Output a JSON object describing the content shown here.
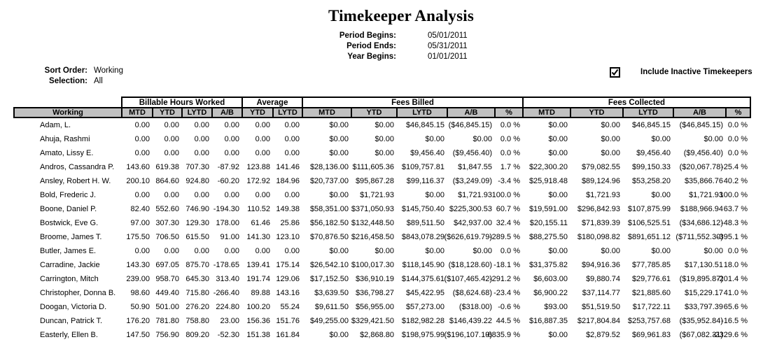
{
  "report": {
    "title": "Timekeeper Analysis",
    "params": [
      {
        "label": "Period Begins:",
        "value": "05/01/2011"
      },
      {
        "label": "Period Ends:",
        "value": "05/31/2011"
      },
      {
        "label": "Year Begins:",
        "value": "01/01/2011"
      }
    ],
    "sort_order_label": "Sort Order:",
    "sort_order_value": "Working",
    "selection_label": "Selection:",
    "selection_value": "All",
    "include_inactive_label": "Include Inactive Timekeepers",
    "include_inactive_checked": true
  },
  "colors": {
    "header_bg": "#c0c0c0",
    "border": "#000000",
    "text": "#000000"
  },
  "table": {
    "group_headers": [
      {
        "label": "",
        "colspan": 1
      },
      {
        "label": "Billable Hours Worked",
        "colspan": 4
      },
      {
        "label": "Average",
        "colspan": 2
      },
      {
        "label": "Fees Billed",
        "colspan": 5
      },
      {
        "label": "Fees Collected",
        "colspan": 5
      }
    ],
    "columns": [
      "Working",
      "MTD",
      "YTD",
      "LYTD",
      "A/B",
      "YTD",
      "LYTD",
      "MTD",
      "YTD",
      "LYTD",
      "A/B",
      "%",
      "MTD",
      "YTD",
      "LYTD",
      "A/B",
      "%"
    ],
    "rows": [
      [
        "Adam, L.",
        "0.00",
        "0.00",
        "0.00",
        "0.00",
        "0.00",
        "0.00",
        "$0.00",
        "$0.00",
        "$46,845.15",
        "($46,845.15)",
        "0.0 %",
        "$0.00",
        "$0.00",
        "$46,845.15",
        "($46,845.15)",
        "0.0 %"
      ],
      [
        "Ahuja, Rashmi",
        "0.00",
        "0.00",
        "0.00",
        "0.00",
        "0.00",
        "0.00",
        "$0.00",
        "$0.00",
        "$0.00",
        "$0.00",
        "0.0 %",
        "$0.00",
        "$0.00",
        "$0.00",
        "$0.00",
        "0.0 %"
      ],
      [
        "Amato, Lissy E.",
        "0.00",
        "0.00",
        "0.00",
        "0.00",
        "0.00",
        "0.00",
        "$0.00",
        "$0.00",
        "$9,456.40",
        "($9,456.40)",
        "0.0 %",
        "$0.00",
        "$0.00",
        "$9,456.40",
        "($9,456.40)",
        "0.0 %"
      ],
      [
        "Andros, Cassandra P.",
        "143.60",
        "619.38",
        "707.30",
        "-87.92",
        "123.88",
        "141.46",
        "$28,136.00",
        "$111,605.36",
        "$109,757.81",
        "$1,847.55",
        "1.7 %",
        "$22,300.20",
        "$79,082.55",
        "$99,150.33",
        "($20,067.78)",
        "-25.4 %"
      ],
      [
        "Ansley, Robert H. W.",
        "200.10",
        "864.60",
        "924.80",
        "-60.20",
        "172.92",
        "184.96",
        "$20,737.00",
        "$95,867.28",
        "$99,116.37",
        "($3,249.09)",
        "-3.4 %",
        "$25,918.48",
        "$89,124.96",
        "$53,258.20",
        "$35,866.76",
        "40.2 %"
      ],
      [
        "Bold, Frederic J.",
        "0.00",
        "0.00",
        "0.00",
        "0.00",
        "0.00",
        "0.00",
        "$0.00",
        "$1,721.93",
        "$0.00",
        "$1,721.93",
        "100.0 %",
        "$0.00",
        "$1,721.93",
        "$0.00",
        "$1,721.93",
        "100.0 %"
      ],
      [
        "Boone, Daniel P.",
        "82.40",
        "552.60",
        "746.90",
        "-194.30",
        "110.52",
        "149.38",
        "$58,351.00",
        "$371,050.93",
        "$145,750.40",
        "$225,300.53",
        "60.7 %",
        "$19,591.00",
        "$296,842.93",
        "$107,875.99",
        "$188,966.94",
        "63.7 %"
      ],
      [
        "Bostwick, Eve G.",
        "97.00",
        "307.30",
        "129.30",
        "178.00",
        "61.46",
        "25.86",
        "$56,182.50",
        "$132,448.50",
        "$89,511.50",
        "$42,937.00",
        "32.4 %",
        "$20,155.11",
        "$71,839.39",
        "$106,525.51",
        "($34,686.12)",
        "-48.3 %"
      ],
      [
        "Broome, James T.",
        "175.50",
        "706.50",
        "615.50",
        "91.00",
        "141.30",
        "123.10",
        "$70,876.50",
        "$216,458.50",
        "$843,078.29",
        "($626,619.79)",
        "-289.5 %",
        "$88,275.50",
        "$180,098.82",
        "$891,651.12",
        "($711,552.30)",
        "-395.1 %"
      ],
      [
        "Butler, James E.",
        "0.00",
        "0.00",
        "0.00",
        "0.00",
        "0.00",
        "0.00",
        "$0.00",
        "$0.00",
        "$0.00",
        "$0.00",
        "0.0 %",
        "$0.00",
        "$0.00",
        "$0.00",
        "$0.00",
        "0.0 %"
      ],
      [
        "Carradine, Jackie",
        "143.30",
        "697.05",
        "875.70",
        "-178.65",
        "139.41",
        "175.14",
        "$26,542.10",
        "$100,017.30",
        "$118,145.90",
        "($18,128.60)",
        "-18.1 %",
        "$31,375.82",
        "$94,916.36",
        "$77,785.85",
        "$17,130.51",
        "18.0 %"
      ],
      [
        "Carrington, Mitch",
        "239.00",
        "958.70",
        "645.30",
        "313.40",
        "191.74",
        "129.06",
        "$17,152.50",
        "$36,910.19",
        "$144,375.61",
        "($107,465.42)",
        "-291.2 %",
        "$6,603.00",
        "$9,880.74",
        "$29,776.61",
        "($19,895.87)",
        "-201.4 %"
      ],
      [
        "Christopher, Donna B.",
        "98.60",
        "449.40",
        "715.80",
        "-266.40",
        "89.88",
        "143.16",
        "$3,639.50",
        "$36,798.27",
        "$45,422.95",
        "($8,624.68)",
        "-23.4 %",
        "$6,900.22",
        "$37,114.77",
        "$21,885.60",
        "$15,229.17",
        "41.0 %"
      ],
      [
        "Doogan, Victoria D.",
        "50.90",
        "501.00",
        "276.20",
        "224.80",
        "100.20",
        "55.24",
        "$9,611.50",
        "$56,955.00",
        "$57,273.00",
        "($318.00)",
        "-0.6 %",
        "$93.00",
        "$51,519.50",
        "$17,722.11",
        "$33,797.39",
        "65.6 %"
      ],
      [
        "Duncan, Patrick T.",
        "176.20",
        "781.80",
        "758.80",
        "23.00",
        "156.36",
        "151.76",
        "$49,255.00",
        "$329,421.50",
        "$182,982.28",
        "$146,439.22",
        "44.5 %",
        "$16,887.35",
        "$217,804.84",
        "$253,757.68",
        "($35,952.84)",
        "-16.5 %"
      ],
      [
        "Easterly, Ellen B.",
        "147.50",
        "756.90",
        "809.20",
        "-52.30",
        "151.38",
        "161.84",
        "$0.00",
        "$2,868.80",
        "$198,975.99",
        "($196,107.19)",
        "-6835.9 %",
        "$0.00",
        "$2,879.52",
        "$69,961.83",
        "($67,082.31)",
        "-2329.6 %"
      ]
    ]
  }
}
